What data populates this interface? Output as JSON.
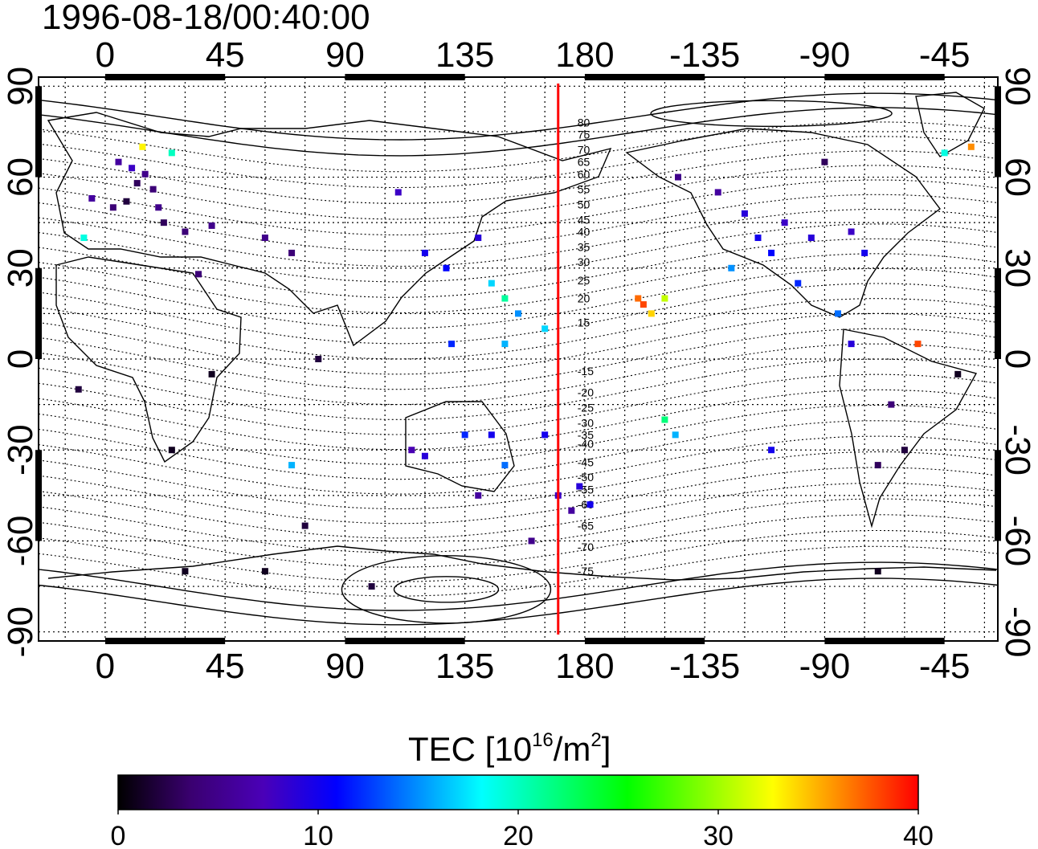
{
  "timestamp": "1996-08-18/00:40:00",
  "map": {
    "x_ticks": [
      "0",
      "45",
      "90",
      "135",
      "180",
      "-135",
      "-90",
      "-45"
    ],
    "y_ticks": [
      "90",
      "60",
      "30",
      "0",
      "-30",
      "-60",
      "-90"
    ],
    "x_tick_lon": [
      0,
      45,
      90,
      135,
      180,
      225,
      270,
      315
    ],
    "y_tick_lat": [
      90,
      60,
      30,
      0,
      -30,
      -60,
      -90
    ],
    "lon_range": [
      -25,
      335
    ],
    "lat_range": [
      -93,
      93
    ],
    "meridian_line": {
      "lon": 170,
      "color": "#ff0000"
    },
    "contour_labels": [
      "80",
      "75",
      "70",
      "65",
      "60",
      "55",
      "50",
      "45",
      "40",
      "35",
      "30",
      "25",
      "20",
      "15",
      "-15",
      "-20",
      "-25",
      "-30",
      "-35",
      "-40",
      "-45",
      "-50",
      "-55",
      "-60",
      "-65",
      "-70",
      "-75"
    ],
    "contour_label_lat": [
      78,
      74,
      69,
      65,
      61,
      56,
      51,
      46,
      42,
      37,
      32,
      26,
      20,
      12,
      -4,
      -11,
      -16,
      -21,
      -25,
      -28,
      -34,
      -39,
      -43,
      -48,
      -55,
      -62,
      -70
    ]
  },
  "colorbar": {
    "title_main": "TEC  [10",
    "title_sup1": "16",
    "title_mid": "/m",
    "title_sup2": "2",
    "title_end": "]",
    "min": 0,
    "max": 40,
    "tick_labels": [
      "0",
      "10",
      "20",
      "30",
      "40"
    ],
    "colors": [
      "#000000",
      "#3a0070",
      "#4a00b8",
      "#0000ff",
      "#0080ff",
      "#00ffff",
      "#00ff80",
      "#00ff00",
      "#80ff00",
      "#ffff00",
      "#ff8000",
      "#ff0000"
    ]
  },
  "tec_points": [
    {
      "lon": 5,
      "lat": 65,
      "tec": 6
    },
    {
      "lon": 10,
      "lat": 63,
      "tec": 8
    },
    {
      "lon": 12,
      "lat": 58,
      "tec": 3
    },
    {
      "lon": 15,
      "lat": 61,
      "tec": 5
    },
    {
      "lon": 18,
      "lat": 56,
      "tec": 4
    },
    {
      "lon": 8,
      "lat": 52,
      "tec": 2
    },
    {
      "lon": 3,
      "lat": 50,
      "tec": 4
    },
    {
      "lon": -5,
      "lat": 53,
      "tec": 6
    },
    {
      "lon": 20,
      "lat": 50,
      "tec": 5
    },
    {
      "lon": 14,
      "lat": 70,
      "tec": 33
    },
    {
      "lon": 25,
      "lat": 68,
      "tec": 20
    },
    {
      "lon": 22,
      "lat": 45,
      "tec": 3
    },
    {
      "lon": 30,
      "lat": 42,
      "tec": 4
    },
    {
      "lon": 40,
      "lat": 44,
      "tec": 5
    },
    {
      "lon": 60,
      "lat": 40,
      "tec": 5
    },
    {
      "lon": 70,
      "lat": 35,
      "tec": 4
    },
    {
      "lon": -8,
      "lat": 40,
      "tec": 19
    },
    {
      "lon": 35,
      "lat": 28,
      "tec": 4
    },
    {
      "lon": 80,
      "lat": 0,
      "tec": 2
    },
    {
      "lon": 40,
      "lat": -5,
      "tec": 1
    },
    {
      "lon": -10,
      "lat": -10,
      "tec": 2
    },
    {
      "lon": 25,
      "lat": -30,
      "tec": 1
    },
    {
      "lon": 70,
      "lat": -35,
      "tec": 16
    },
    {
      "lon": 75,
      "lat": -55,
      "tec": 2
    },
    {
      "lon": 30,
      "lat": -70,
      "tec": 1
    },
    {
      "lon": 60,
      "lat": -70,
      "tec": 1
    },
    {
      "lon": 100,
      "lat": -75,
      "tec": 2
    },
    {
      "lon": 110,
      "lat": 55,
      "tec": 8
    },
    {
      "lon": 120,
      "lat": 35,
      "tec": 10
    },
    {
      "lon": 128,
      "lat": 30,
      "tec": 11
    },
    {
      "lon": 140,
      "lat": 40,
      "tec": 9
    },
    {
      "lon": 145,
      "lat": 25,
      "tec": 17
    },
    {
      "lon": 150,
      "lat": 20,
      "tec": 21
    },
    {
      "lon": 155,
      "lat": 15,
      "tec": 15
    },
    {
      "lon": 130,
      "lat": 5,
      "tec": 12
    },
    {
      "lon": 150,
      "lat": 5,
      "tec": 16
    },
    {
      "lon": 165,
      "lat": 10,
      "tec": 17
    },
    {
      "lon": 115,
      "lat": -30,
      "tec": 7
    },
    {
      "lon": 120,
      "lat": -32,
      "tec": 9
    },
    {
      "lon": 135,
      "lat": -25,
      "tec": 12
    },
    {
      "lon": 145,
      "lat": -25,
      "tec": 10
    },
    {
      "lon": 150,
      "lat": -35,
      "tec": 14
    },
    {
      "lon": 165,
      "lat": -25,
      "tec": 10
    },
    {
      "lon": 170,
      "lat": -45,
      "tec": 8
    },
    {
      "lon": 178,
      "lat": -42,
      "tec": 9
    },
    {
      "lon": 175,
      "lat": -50,
      "tec": 6
    },
    {
      "lon": 182,
      "lat": -48,
      "tec": 10
    },
    {
      "lon": 160,
      "lat": -60,
      "tec": 5
    },
    {
      "lon": 140,
      "lat": -45,
      "tec": 6
    },
    {
      "lon": 200,
      "lat": 20,
      "tec": 37
    },
    {
      "lon": 202,
      "lat": 18,
      "tec": 38
    },
    {
      "lon": 205,
      "lat": 15,
      "tec": 34
    },
    {
      "lon": 210,
      "lat": 20,
      "tec": 31
    },
    {
      "lon": 210,
      "lat": -20,
      "tec": 22
    },
    {
      "lon": 214,
      "lat": -25,
      "tec": 16
    },
    {
      "lon": 215,
      "lat": 60,
      "tec": 5
    },
    {
      "lon": 230,
      "lat": 55,
      "tec": 6
    },
    {
      "lon": 240,
      "lat": 48,
      "tec": 9
    },
    {
      "lon": 245,
      "lat": 40,
      "tec": 10
    },
    {
      "lon": 250,
      "lat": 35,
      "tec": 11
    },
    {
      "lon": 235,
      "lat": 30,
      "tec": 15
    },
    {
      "lon": 255,
      "lat": 45,
      "tec": 8
    },
    {
      "lon": 265,
      "lat": 40,
      "tec": 9
    },
    {
      "lon": 280,
      "lat": 42,
      "tec": 8
    },
    {
      "lon": 285,
      "lat": 35,
      "tec": 10
    },
    {
      "lon": 260,
      "lat": 25,
      "tec": 12
    },
    {
      "lon": 275,
      "lat": 15,
      "tec": 14
    },
    {
      "lon": 280,
      "lat": 5,
      "tec": 9
    },
    {
      "lon": 295,
      "lat": -15,
      "tec": 4
    },
    {
      "lon": 290,
      "lat": -35,
      "tec": 3
    },
    {
      "lon": 300,
      "lat": -30,
      "tec": 2
    },
    {
      "lon": 250,
      "lat": -30,
      "tec": 10
    },
    {
      "lon": 290,
      "lat": -70,
      "tec": 1
    },
    {
      "lon": 305,
      "lat": 5,
      "tec": 38
    },
    {
      "lon": 315,
      "lat": 68,
      "tec": 19
    },
    {
      "lon": 325,
      "lat": 70,
      "tec": 36
    },
    {
      "lon": 320,
      "lat": -5,
      "tec": 1
    },
    {
      "lon": 270,
      "lat": 65,
      "tec": 3
    }
  ]
}
